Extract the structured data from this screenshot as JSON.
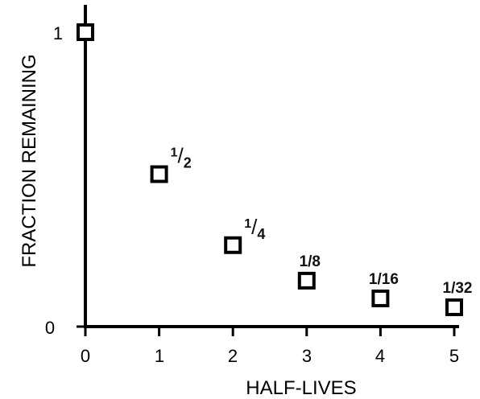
{
  "chart_data": {
    "type": "scatter",
    "title": "",
    "xlabel": "HALF-LIVES",
    "ylabel": "FRACTION REMAINING",
    "xlim": [
      0,
      5
    ],
    "ylim": [
      0,
      1
    ],
    "x_ticks": [
      "0",
      "1",
      "2",
      "3",
      "4",
      "5"
    ],
    "y_ticks": [
      "0",
      "1"
    ],
    "grid": false,
    "marker": "open-square",
    "points": [
      {
        "x": 0,
        "y": 1,
        "label": ""
      },
      {
        "x": 1,
        "y": 0.5,
        "label": "1/2"
      },
      {
        "x": 2,
        "y": 0.25,
        "label": "1/4"
      },
      {
        "x": 3,
        "y": 0.125,
        "label": "1/8"
      },
      {
        "x": 4,
        "y": 0.0625,
        "label": "1/16"
      },
      {
        "x": 5,
        "y": 0.03125,
        "label": "1/32"
      }
    ],
    "color": "#000000"
  }
}
